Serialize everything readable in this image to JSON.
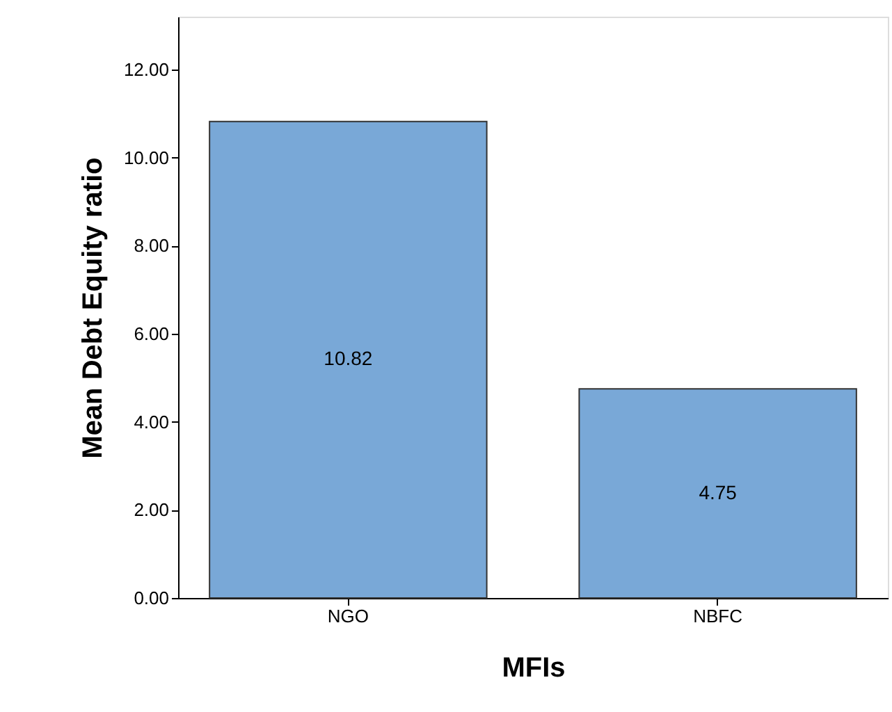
{
  "chart_data": {
    "type": "bar",
    "xlabel": "MFIs",
    "ylabel": "Mean Debt Equity ratio",
    "categories": [
      "NGO",
      "NBFC"
    ],
    "values": [
      10.82,
      4.75
    ],
    "color": "#79a8d7",
    "ylim": [
      0,
      13.2
    ],
    "yticks": [
      {
        "value": 0,
        "label": "0.00"
      },
      {
        "value": 2,
        "label": "2.00"
      },
      {
        "value": 4,
        "label": "4.00"
      },
      {
        "value": 6,
        "label": "6.00"
      },
      {
        "value": 8,
        "label": "8.00"
      },
      {
        "value": 10,
        "label": "10.00"
      },
      {
        "value": 12,
        "label": "12.00"
      }
    ],
    "data_labels": true,
    "grid": false
  }
}
